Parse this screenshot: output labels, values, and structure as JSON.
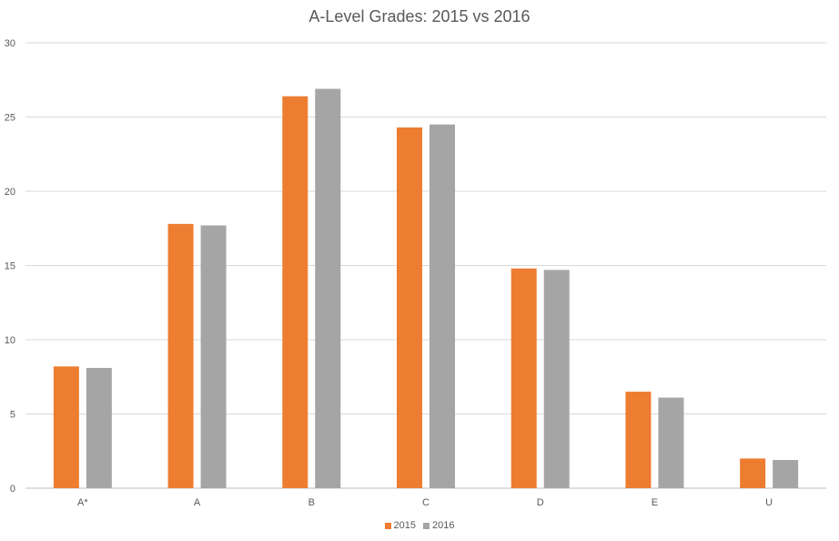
{
  "chart_data": {
    "type": "bar",
    "title": "A-Level Grades: 2015 vs 2016",
    "xlabel": "",
    "ylabel": "",
    "categories": [
      "A*",
      "A",
      "B",
      "C",
      "D",
      "E",
      "U"
    ],
    "series": [
      {
        "name": "2015",
        "color": "#ED7D31",
        "values": [
          8.2,
          17.8,
          26.4,
          24.3,
          14.8,
          6.5,
          2.0
        ]
      },
      {
        "name": "2016",
        "color": "#A5A5A5",
        "values": [
          8.1,
          17.7,
          26.9,
          24.5,
          14.7,
          6.1,
          1.9
        ]
      }
    ],
    "ylim": [
      0,
      30
    ],
    "yticks": [
      "0",
      "5",
      "10",
      "15",
      "20",
      "25",
      "30"
    ],
    "grid": true,
    "legend_position": "bottom"
  }
}
